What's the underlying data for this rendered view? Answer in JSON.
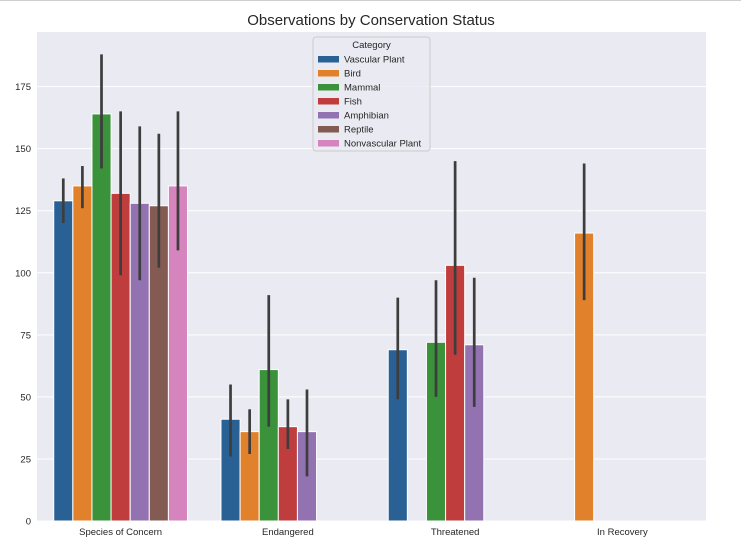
{
  "chart_data": {
    "type": "bar",
    "title": "Observations by Conservation Status",
    "xlabel": "",
    "ylabel": "",
    "ylim": [
      0,
      197
    ],
    "yticks": [
      0,
      25,
      50,
      75,
      100,
      125,
      150,
      175
    ],
    "grid": true,
    "legend_title": "Category",
    "legend_position": "top-center",
    "categories": [
      "Species of Concern",
      "Endangered",
      "Threatened",
      "In Recovery"
    ],
    "series": [
      {
        "name": "Vascular Plant",
        "color": "#2a6195",
        "values": [
          129,
          41,
          69,
          null
        ],
        "ci": [
          [
            120,
            138
          ],
          [
            26,
            55
          ],
          [
            49,
            90
          ],
          null
        ]
      },
      {
        "name": "Bird",
        "color": "#e1812c",
        "values": [
          135,
          36,
          null,
          116
        ],
        "ci": [
          [
            126,
            143
          ],
          [
            27,
            45
          ],
          null,
          [
            89,
            144
          ]
        ]
      },
      {
        "name": "Mammal",
        "color": "#3a923a",
        "values": [
          164,
          61,
          72,
          null
        ],
        "ci": [
          [
            142,
            188
          ],
          [
            38,
            91
          ],
          [
            50,
            97
          ],
          null
        ]
      },
      {
        "name": "Fish",
        "color": "#c03d3e",
        "values": [
          132,
          38,
          103,
          null
        ],
        "ci": [
          [
            99,
            165
          ],
          [
            29,
            49
          ],
          [
            67,
            145
          ],
          null
        ]
      },
      {
        "name": "Amphibian",
        "color": "#9372b2",
        "values": [
          128,
          36,
          71,
          null
        ],
        "ci": [
          [
            97,
            159
          ],
          [
            18,
            53
          ],
          [
            46,
            98
          ],
          null
        ]
      },
      {
        "name": "Reptile",
        "color": "#845b53",
        "values": [
          127,
          null,
          null,
          null
        ],
        "ci": [
          [
            102,
            156
          ],
          null,
          null,
          null
        ]
      },
      {
        "name": "Nonvascular Plant",
        "color": "#d684bd",
        "values": [
          135,
          null,
          null,
          null
        ],
        "ci": [
          [
            109,
            165
          ],
          null,
          null,
          null
        ]
      }
    ]
  }
}
